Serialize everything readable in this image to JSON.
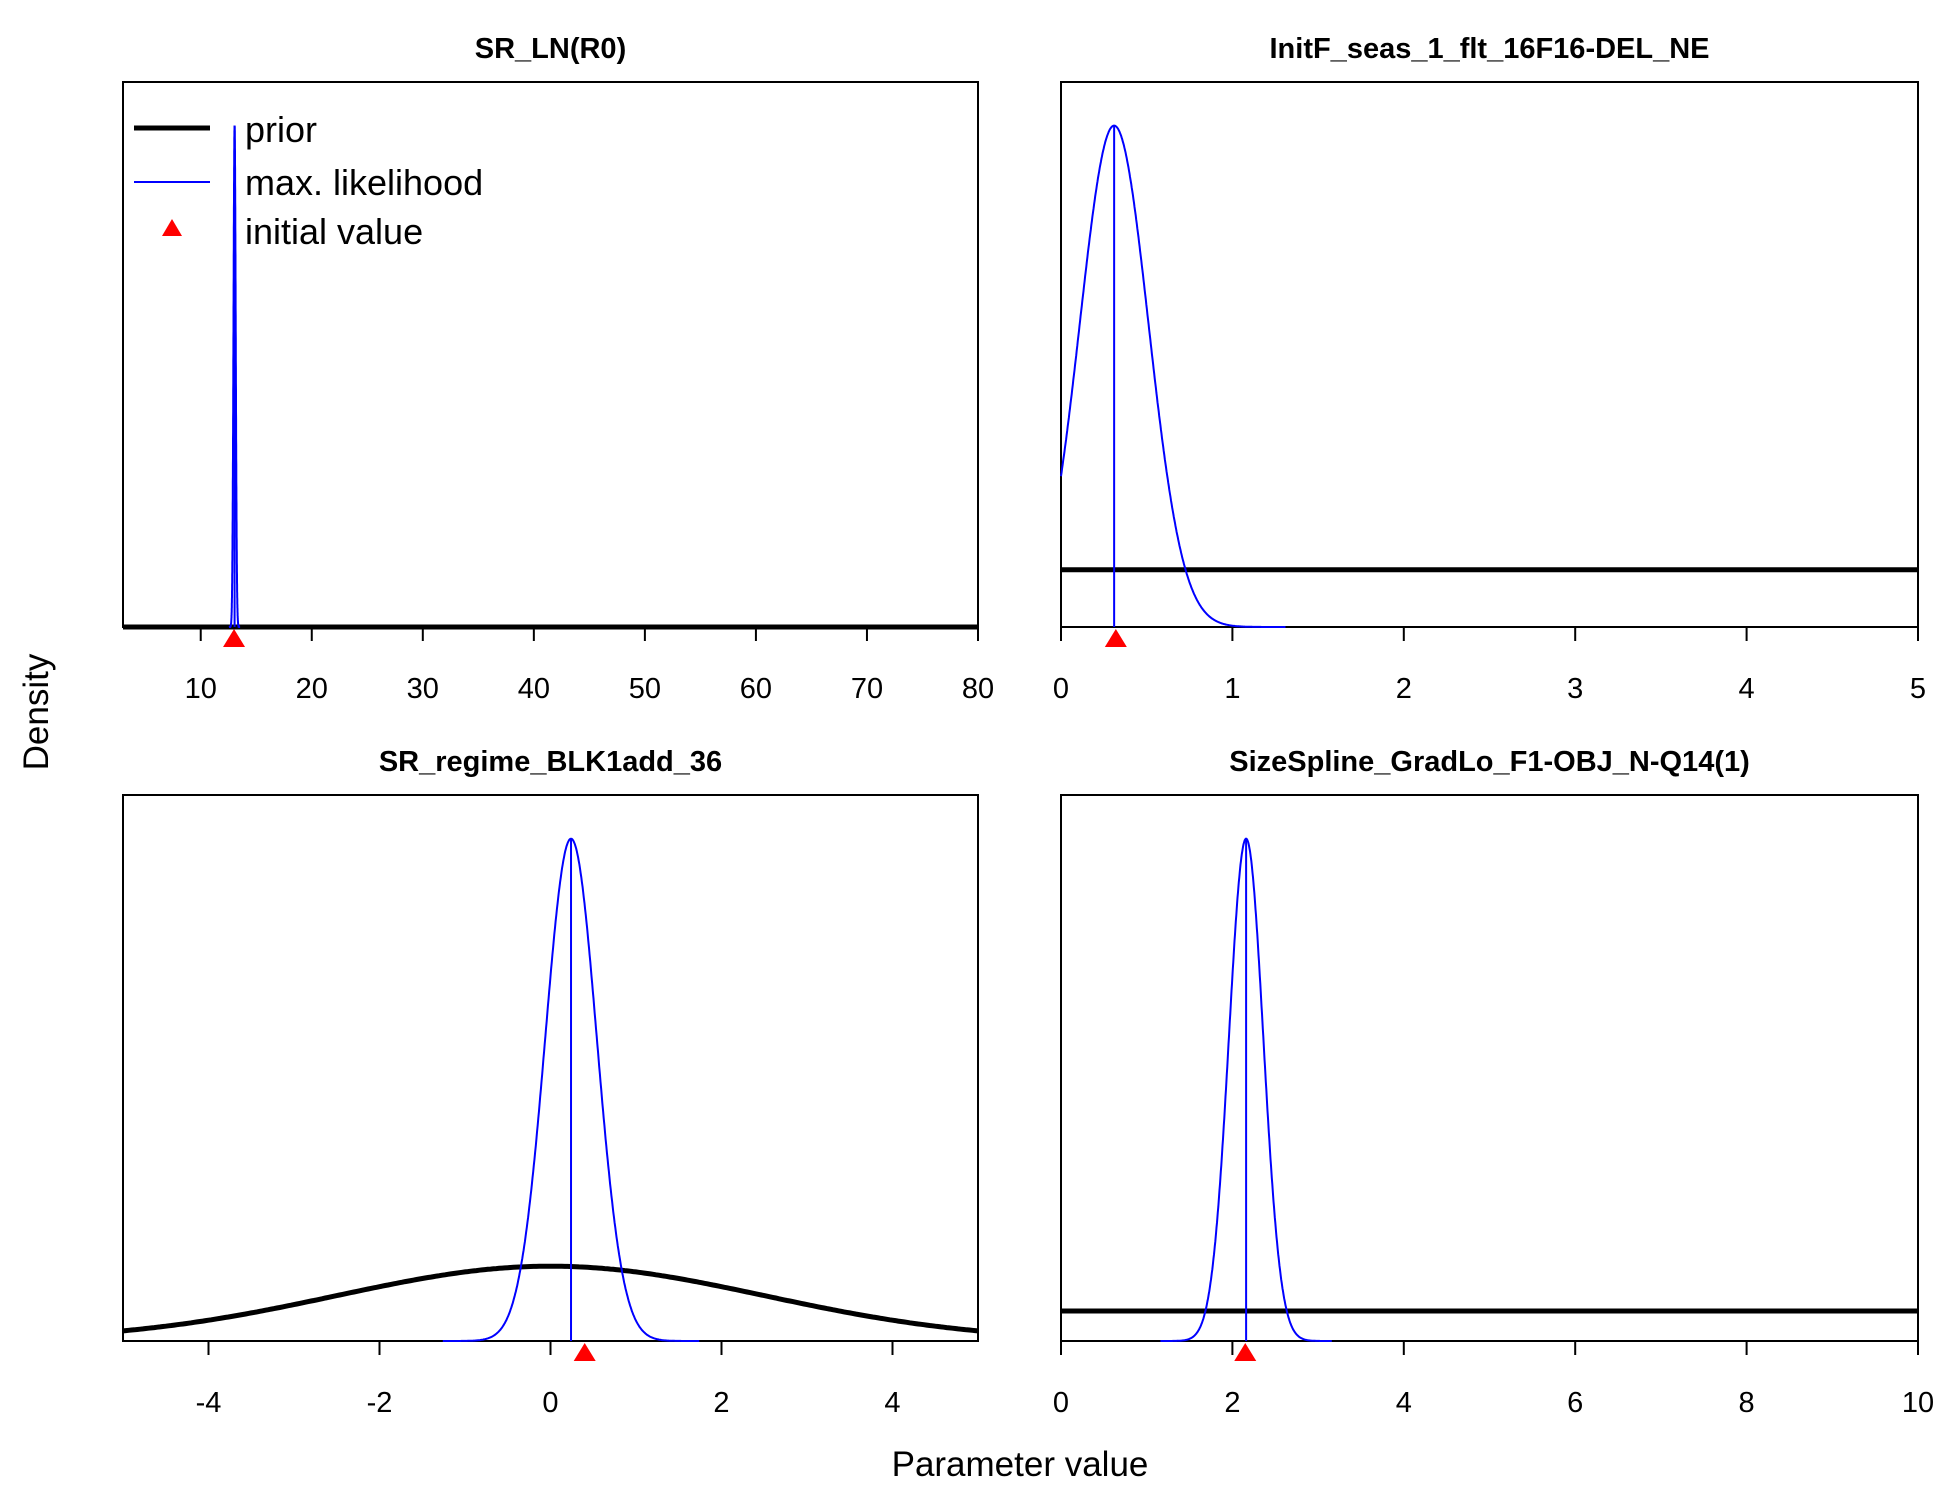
{
  "figure": {
    "ylabel": "Density",
    "xlabel": "Parameter value",
    "legend": {
      "placement": "top-left of first panel",
      "items": [
        {
          "label": "prior",
          "style": "thick-line",
          "color": "#000000"
        },
        {
          "label": "max. likelihood",
          "style": "thin-line",
          "color": "#0000ff"
        },
        {
          "label": "initial value",
          "style": "triangle",
          "color": "#ff0000"
        }
      ]
    },
    "colors": {
      "prior": "#000000",
      "mle": "#0000ff",
      "initial": "#ff0000",
      "axis": "#000000"
    }
  },
  "chart_data": [
    {
      "type": "line",
      "title": "SR_LN(R0)",
      "xlim": [
        3,
        80
      ],
      "xticks": [
        10,
        20,
        30,
        40,
        50,
        60,
        70,
        80
      ],
      "prior": {
        "dist": "uniform",
        "min": 3,
        "max": 80,
        "rel_height": 0.0
      },
      "mle": {
        "dist": "normal",
        "mean": 13.05,
        "sd": 0.1,
        "rel_height": 0.92
      },
      "initial_value": 13
    },
    {
      "type": "line",
      "title": "InitF_seas_1_flt_16F16-DEL_NE",
      "xlim": [
        0,
        5
      ],
      "xticks": [
        0,
        1,
        2,
        3,
        4,
        5
      ],
      "prior": {
        "dist": "uniform",
        "min": 0,
        "max": 5,
        "rel_height": 0.105
      },
      "mle": {
        "dist": "normal",
        "mean": 0.31,
        "sd": 0.2,
        "rel_height": 0.92
      },
      "initial_value": 0.32
    },
    {
      "type": "line",
      "title": "SR_regime_BLK1add_36",
      "xlim": [
        -5,
        5
      ],
      "xticks": [
        -4,
        -2,
        0,
        2,
        4
      ],
      "tick_labels": [
        "-4",
        "-2",
        "0",
        "2",
        "4"
      ],
      "prior": {
        "dist": "normal",
        "mean": 0,
        "sd": 2.5,
        "rel_height": 0.137
      },
      "mle": {
        "dist": "normal",
        "mean": 0.24,
        "sd": 0.3,
        "rel_height": 0.92
      },
      "initial_value": 0.4
    },
    {
      "type": "line",
      "title": "SizeSpline_GradLo_F1-OBJ_N-Q14(1)",
      "xlim": [
        0,
        10
      ],
      "xticks": [
        0,
        2,
        4,
        6,
        8,
        10
      ],
      "prior": {
        "dist": "uniform",
        "min": 0,
        "max": 10,
        "rel_height": 0.055
      },
      "mle": {
        "dist": "normal",
        "mean": 2.16,
        "sd": 0.2,
        "rel_height": 0.92
      },
      "initial_value": 2.15
    }
  ]
}
